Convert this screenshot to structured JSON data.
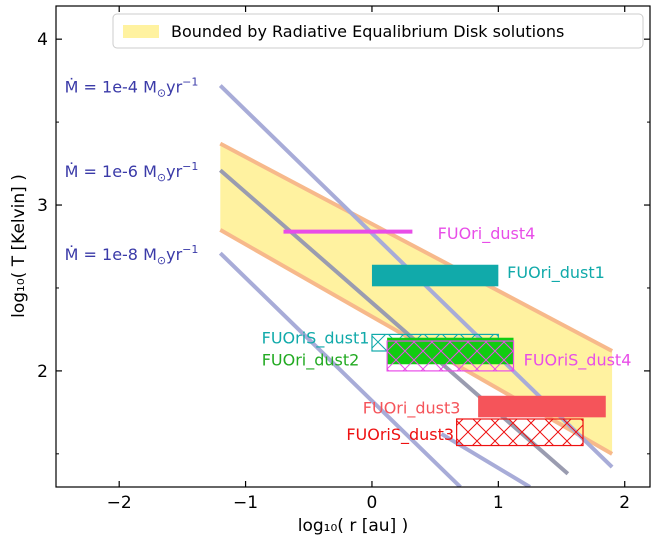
{
  "chart_data": {
    "type": "line",
    "xlabel": "log₁₀( r [au] )",
    "ylabel": "log₁₀( T [Kelvin] )",
    "xlim": [
      -2.5,
      2.2
    ],
    "ylim": [
      1.3,
      4.2
    ],
    "xticks": [
      -2,
      -1,
      0,
      1,
      2
    ],
    "xtick_labels": [
      "−2",
      "−1",
      "0",
      "1",
      "2"
    ],
    "yticks": [
      2,
      3,
      4
    ],
    "ytick_labels": [
      "2",
      "3",
      "4"
    ],
    "grid": false,
    "legend": {
      "placement": "top-right",
      "entries": [
        {
          "label": "Bounded by Radiative Equalibrium Disk solutions",
          "color": "#fff2a0"
        }
      ]
    },
    "band": {
      "name": "Bounded by Radiative Equalibrium Disk solutions",
      "x": [
        -1.2,
        1.9
      ],
      "upper": [
        3.37,
        2.12
      ],
      "lower": [
        2.85,
        1.5
      ],
      "fill": "#fff2a0",
      "edge_color": "#f7b98b"
    },
    "accretion_lines": [
      {
        "label_prefix": "Ṁ = 1e-4 M",
        "label_suffix": "yr",
        "sup": "−1",
        "x": [
          -1.2,
          1.9
        ],
        "y": [
          3.72,
          1.42
        ],
        "color": "#a8acd8",
        "label_x": -2.4,
        "label_y": 3.72
      },
      {
        "label_prefix": "Ṁ = 1e-6 M",
        "label_suffix": "yr",
        "sup": "−1",
        "x": [
          -1.2,
          1.55
        ],
        "y": [
          3.21,
          1.38
        ],
        "color": "#9a9cb0",
        "label_x": -2.4,
        "label_y": 3.21
      },
      {
        "label_prefix": "Ṁ = 1e-8 M",
        "label_suffix": "yr",
        "sup": "−1",
        "x": [
          -1.2,
          0.7
        ],
        "y": [
          2.71,
          1.3
        ],
        "color": "#a8acd8",
        "label_x": -2.4,
        "label_y": 2.71
      },
      {
        "x": [
          0.55,
          1.25
        ],
        "y": [
          1.62,
          1.3
        ],
        "color": "#a8acd8"
      }
    ],
    "regions": [
      {
        "label": "FUOri_dust4",
        "x": [
          -0.7,
          0.32
        ],
        "y": [
          2.83,
          2.85
        ],
        "style": "line",
        "color": "#e84de8",
        "label_x": 0.52,
        "label_y": 2.83,
        "label_color": "#e84de8"
      },
      {
        "label": "FUOri_dust1",
        "x": [
          0.0,
          1.0
        ],
        "y": [
          2.51,
          2.64
        ],
        "style": "solid",
        "color": "#11aaaa",
        "label_x": 1.07,
        "label_y": 2.595,
        "label_color": "#11aaaa"
      },
      {
        "label": "FUOriS_dust1",
        "x": [
          0.0,
          1.0
        ],
        "y": [
          2.12,
          2.22
        ],
        "style": "hatch",
        "color": "#11aaaa",
        "label_x": -0.02,
        "label_y": 2.2,
        "label_color": "#11aaaa",
        "anchor": "end"
      },
      {
        "label": "FUOri_dust2",
        "x": [
          0.12,
          1.12
        ],
        "y": [
          2.04,
          2.2
        ],
        "style": "solid",
        "color": "#11cc11",
        "label_x": -0.1,
        "label_y": 2.07,
        "label_color": "#22aa22",
        "anchor": "end"
      },
      {
        "label": "FUOriS_dust4",
        "x": [
          0.12,
          1.12
        ],
        "y": [
          2.0,
          2.18
        ],
        "style": "hatch",
        "color": "#e84de8",
        "label_x": 1.2,
        "label_y": 2.07,
        "label_color": "#e84de8"
      },
      {
        "label": "FUOri_dust3",
        "x": [
          0.84,
          1.85
        ],
        "y": [
          1.72,
          1.85
        ],
        "style": "solid",
        "color": "#f5545a",
        "label_x": 0.7,
        "label_y": 1.78,
        "label_color": "#f5545a",
        "anchor": "end"
      },
      {
        "label": "FUOriS_dust3",
        "x": [
          0.67,
          1.67
        ],
        "y": [
          1.55,
          1.71
        ],
        "style": "hatch",
        "color": "#ee1111",
        "label_x": 0.65,
        "label_y": 1.62,
        "label_color": "#ee1111",
        "anchor": "end"
      }
    ]
  }
}
